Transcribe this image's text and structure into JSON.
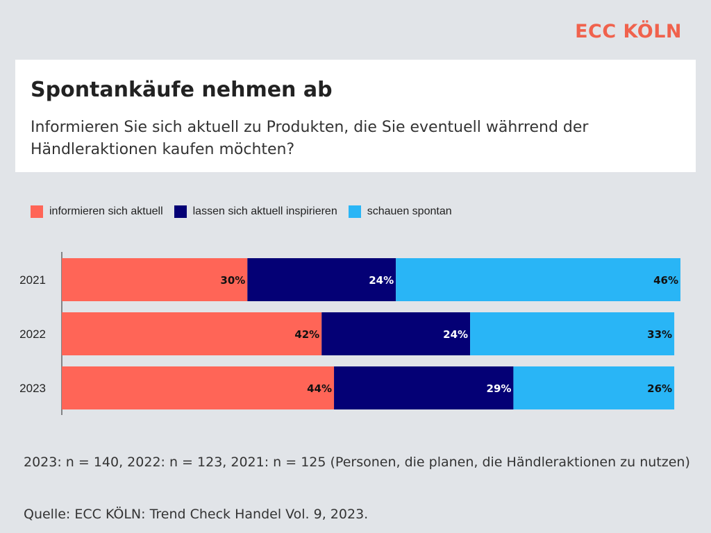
{
  "brand": {
    "label": "ECC KÖLN",
    "color": "#f0624d"
  },
  "header": {
    "title": "Spontankäufe nehmen ab",
    "subtitle": "Informieren Sie sich aktuell zu Produkten, die Sie eventuell währrend der Händleraktionen kaufen möchten?"
  },
  "chart_data": {
    "type": "bar",
    "orientation": "horizontal",
    "stacked": true,
    "categories": [
      "2021",
      "2022",
      "2023"
    ],
    "series": [
      {
        "name": "informieren sich aktuell",
        "color": "#ff6557",
        "values": [
          30,
          42,
          44
        ],
        "labels": [
          "30%",
          "42%",
          "44%"
        ]
      },
      {
        "name": "lassen sich aktuell inspirieren",
        "color": "#040075",
        "values": [
          24,
          24,
          29
        ],
        "labels": [
          "24%",
          "24%",
          "29%"
        ]
      },
      {
        "name": "schauen spontan",
        "color": "#29b5f6",
        "values": [
          46,
          33,
          26
        ],
        "labels": [
          "46%",
          "33%",
          "26%"
        ]
      }
    ],
    "legend_position": "top-left",
    "grid": false
  },
  "footnote": "2023: n = 140, 2022: n = 123, 2021: n = 125 (Personen, die planen, die Händleraktionen zu nutzen)",
  "source": "Quelle: ECC KÖLN: Trend Check Handel Vol. 9, 2023."
}
